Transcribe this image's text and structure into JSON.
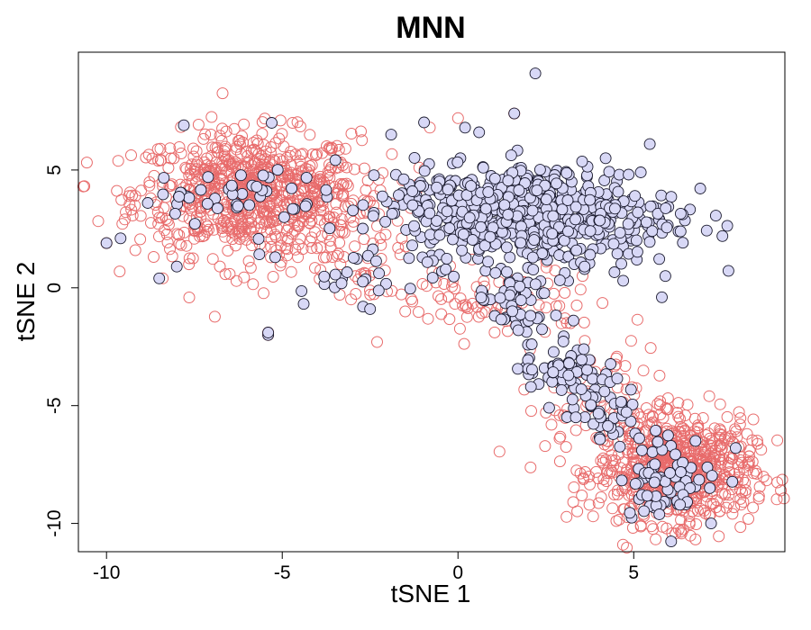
{
  "chart_data": {
    "type": "scatter",
    "title": "MNN",
    "xlabel": "tSNE 1",
    "ylabel": "tSNE 2",
    "xlim": [
      -10.8,
      9.3
    ],
    "ylim": [
      -11.2,
      10.0
    ],
    "xticks": [
      -10,
      -5,
      0,
      5
    ],
    "yticks": [
      -10,
      -5,
      0,
      5
    ],
    "grid": false,
    "legend": "none",
    "colors": {
      "batch_outline": "#e86b6b",
      "batch_fill": "#d8d8f6",
      "batch_edge": "#1a1a2e"
    },
    "series": [
      {
        "style": "open-circle",
        "color": "#e86b6b",
        "clusters": [
          {
            "cx": -6.0,
            "cy": 4.0,
            "sx": 1.6,
            "sy": 1.3,
            "n": 700
          },
          {
            "cx": -3.8,
            "cy": 2.8,
            "sx": 1.2,
            "sy": 1.6,
            "n": 120
          },
          {
            "cx": 1.0,
            "cy": -0.6,
            "sx": 1.8,
            "sy": 0.8,
            "n": 90
          },
          {
            "cx": 6.2,
            "cy": -7.8,
            "sx": 1.1,
            "sy": 1.1,
            "n": 700
          },
          {
            "cx": 4.5,
            "cy": -5.0,
            "sx": 1.0,
            "sy": 1.3,
            "n": 90
          }
        ],
        "points": [
          [
            -10.0,
            1.9
          ],
          [
            -8.4,
            0.4
          ],
          [
            -5.4,
            -1.9
          ],
          [
            -5.4,
            -2.0
          ],
          [
            0.0,
            7.2
          ],
          [
            -2.3,
            -2.3
          ],
          [
            -1.5,
            -1.0
          ],
          [
            4.5,
            -3.0
          ],
          [
            2.5,
            -5.3
          ],
          [
            1.6,
            7.4
          ],
          [
            -0.8,
            6.8
          ],
          [
            3.2,
            -1.5
          ],
          [
            -3.2,
            5.9
          ],
          [
            0.4,
            1.2
          ],
          [
            -1.1,
            5.1
          ]
        ]
      },
      {
        "style": "filled-circle",
        "color": "#d8d8f6",
        "edge": "#1a1a2e",
        "clusters": [
          {
            "cx": 2.6,
            "cy": 3.1,
            "sx": 1.8,
            "sy": 1.1,
            "n": 460
          },
          {
            "cx": -0.5,
            "cy": 3.4,
            "sx": 1.1,
            "sy": 1.0,
            "n": 120
          },
          {
            "cx": 1.6,
            "cy": -0.6,
            "sx": 0.5,
            "sy": 0.7,
            "n": 50
          },
          {
            "cx": 2.9,
            "cy": -3.3,
            "sx": 0.6,
            "sy": 0.8,
            "n": 60
          },
          {
            "cx": 4.2,
            "cy": -5.2,
            "sx": 0.5,
            "sy": 0.6,
            "n": 45
          },
          {
            "cx": 6.0,
            "cy": -8.0,
            "sx": 0.7,
            "sy": 0.9,
            "n": 70
          },
          {
            "cx": -6.5,
            "cy": 3.9,
            "sx": 1.3,
            "sy": 0.6,
            "n": 45
          },
          {
            "cx": -3.3,
            "cy": 0.8,
            "sx": 0.8,
            "sy": 0.7,
            "n": 22
          }
        ],
        "points": [
          [
            2.2,
            9.1
          ],
          [
            -10.0,
            1.9
          ],
          [
            -9.6,
            2.1
          ],
          [
            -8.5,
            0.4
          ],
          [
            -8.0,
            0.9
          ],
          [
            -7.8,
            6.9
          ],
          [
            -5.4,
            -2.0
          ],
          [
            -5.4,
            -1.9
          ],
          [
            -5.3,
            7.0
          ],
          [
            -2.7,
            -0.8
          ],
          [
            -2.5,
            -0.9
          ],
          [
            -1.9,
            6.5
          ],
          [
            -1.3,
            1.8
          ],
          [
            1.6,
            7.4
          ],
          [
            4.2,
            5.5
          ],
          [
            5.2,
            4.9
          ],
          [
            5.9,
            0.5
          ],
          [
            5.8,
            -0.4
          ],
          [
            4.7,
            0.3
          ],
          [
            0.2,
            6.8
          ],
          [
            0.6,
            6.6
          ],
          [
            3.6,
            0.9
          ],
          [
            7.2,
            -10.0
          ],
          [
            7.9,
            -6.8
          ]
        ]
      }
    ]
  }
}
